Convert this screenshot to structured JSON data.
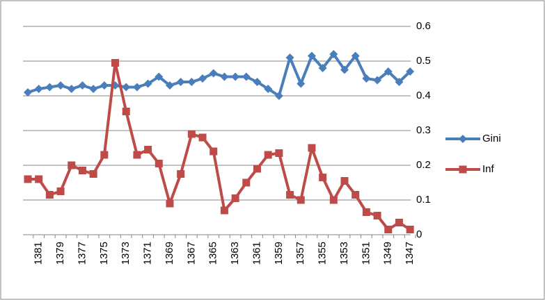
{
  "chart_data": {
    "type": "line",
    "categories": [
      null,
      "1381",
      null,
      "1379",
      null,
      "1377",
      null,
      "1375",
      null,
      "1373",
      null,
      "1371",
      null,
      "1369",
      null,
      "1367",
      null,
      "1365",
      null,
      "1363",
      null,
      "1361",
      null,
      "1359",
      null,
      "1357",
      null,
      "1355",
      null,
      "1353",
      null,
      "1351",
      null,
      "1349",
      null,
      "1347"
    ],
    "series": [
      {
        "name": "Gini",
        "color": "#4a7ebb",
        "marker": "diamond",
        "values": [
          0.41,
          0.42,
          0.425,
          0.43,
          0.42,
          0.43,
          0.42,
          0.43,
          0.43,
          0.425,
          0.425,
          0.435,
          0.455,
          0.43,
          0.44,
          0.44,
          0.45,
          0.465,
          0.455,
          0.455,
          0.455,
          0.44,
          0.42,
          0.4,
          0.51,
          0.435,
          0.515,
          0.48,
          0.52,
          0.475,
          0.515,
          0.45,
          0.445,
          0.47,
          0.44,
          0.47
        ]
      },
      {
        "name": "Inf",
        "color": "#be4b48",
        "marker": "square",
        "values": [
          0.16,
          0.16,
          0.115,
          0.125,
          0.2,
          0.185,
          0.175,
          0.23,
          0.495,
          0.355,
          0.23,
          0.245,
          0.205,
          0.09,
          0.175,
          0.29,
          0.28,
          0.24,
          0.07,
          0.105,
          0.15,
          0.19,
          0.23,
          0.235,
          0.115,
          0.1,
          0.25,
          0.165,
          0.1,
          0.155,
          0.115,
          0.065,
          0.055,
          0.015,
          0.035,
          0.015
        ]
      }
    ],
    "ylim": [
      0,
      0.6
    ],
    "yticks": [
      0,
      0.1,
      0.2,
      0.3,
      0.4,
      0.5,
      0.6
    ],
    "grid": true,
    "legend": "right"
  }
}
